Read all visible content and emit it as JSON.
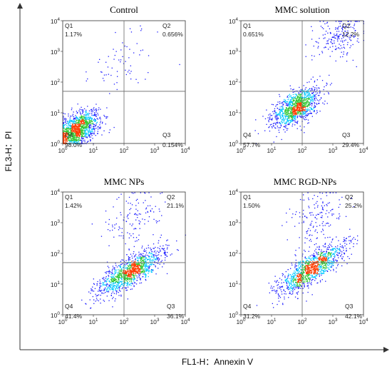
{
  "figure": {
    "xlabel": "FL1-H：Annexin V",
    "ylabel": "FL3-H：PI"
  },
  "chart_data": [
    {
      "type": "scatter",
      "title": "Control",
      "xlabel": "FL1-H：Annexin V",
      "ylabel": "FL3-H：PI",
      "xscale": "log",
      "yscale": "log",
      "xlim": [
        1,
        10000
      ],
      "ylim": [
        1,
        10000
      ],
      "x_ticks": [
        "10",
        "10",
        "10",
        "10",
        "10"
      ],
      "x_tick_exponents": [
        "0",
        "1",
        "2",
        "3",
        "4"
      ],
      "y_ticks": [
        "10",
        "10",
        "10",
        "10",
        "10"
      ],
      "y_tick_exponents": [
        "0",
        "1",
        "2",
        "3",
        "4"
      ],
      "gate": {
        "x": 100,
        "y": 50
      },
      "quadrants": [
        {
          "label": "Q1",
          "percent": "1.17%"
        },
        {
          "label": "Q2",
          "percent": "0.656%"
        },
        {
          "label": "Q3",
          "percent": "0.154%"
        },
        {
          "label": "Q4",
          "percent": "98.0%"
        }
      ],
      "populations": [
        {
          "center": [
            3,
            3
          ],
          "spread": [
            0.35,
            0.3
          ],
          "corr": 0.5,
          "share": 0.95
        },
        {
          "center": [
            100,
            500
          ],
          "spread": [
            0.5,
            0.5
          ],
          "corr": 0.3,
          "share": 0.05
        }
      ]
    },
    {
      "type": "scatter",
      "title": "MMC solution",
      "xlabel": "FL1-H：Annexin V",
      "ylabel": "FL3-H：PI",
      "xscale": "log",
      "yscale": "log",
      "xlim": [
        1,
        10000
      ],
      "ylim": [
        1,
        10000
      ],
      "x_ticks": [
        "10",
        "10",
        "10",
        "10",
        "10"
      ],
      "x_tick_exponents": [
        "0",
        "1",
        "2",
        "3",
        "4"
      ],
      "y_ticks": [
        "10",
        "10",
        "10",
        "10",
        "10"
      ],
      "y_tick_exponents": [
        "0",
        "1",
        "2",
        "3",
        "4"
      ],
      "gate": {
        "x": 100,
        "y": 50
      },
      "quadrants": [
        {
          "label": "Q1",
          "percent": "0.651%"
        },
        {
          "label": "Q2",
          "percent": "12.2%"
        },
        {
          "label": "Q3",
          "percent": "29.4%"
        },
        {
          "label": "Q4",
          "percent": "57.7%"
        }
      ],
      "populations": [
        {
          "center": [
            60,
            15
          ],
          "spread": [
            0.4,
            0.32
          ],
          "corr": 0.6,
          "share": 0.85
        },
        {
          "center": [
            1500,
            3000
          ],
          "spread": [
            0.4,
            0.35
          ],
          "corr": 0.2,
          "share": 0.15
        }
      ]
    },
    {
      "type": "scatter",
      "title": "MMC NPs",
      "xlabel": "FL1-H：Annexin V",
      "ylabel": "FL3-H：PI",
      "xscale": "log",
      "yscale": "log",
      "xlim": [
        1,
        10000
      ],
      "ylim": [
        1,
        10000
      ],
      "x_ticks": [
        "10",
        "10",
        "10",
        "10",
        "10"
      ],
      "x_tick_exponents": [
        "0",
        "1",
        "2",
        "3",
        "4"
      ],
      "y_ticks": [
        "10",
        "10",
        "10",
        "10",
        "10"
      ],
      "y_tick_exponents": [
        "0",
        "1",
        "2",
        "3",
        "4"
      ],
      "gate": {
        "x": 100,
        "y": 50
      },
      "quadrants": [
        {
          "label": "Q1",
          "percent": "1.42%"
        },
        {
          "label": "Q2",
          "percent": "21.1%"
        },
        {
          "label": "Q3",
          "percent": "36.1%"
        },
        {
          "label": "Q4",
          "percent": "41.4%"
        }
      ],
      "populations": [
        {
          "center": [
            150,
            25
          ],
          "spread": [
            0.55,
            0.4
          ],
          "corr": 0.8,
          "share": 0.9
        },
        {
          "center": [
            200,
            1500
          ],
          "spread": [
            0.45,
            0.5
          ],
          "corr": 0.2,
          "share": 0.1
        }
      ]
    },
    {
      "type": "scatter",
      "title": "MMC RGD-NPs",
      "xlabel": "FL1-H：Annexin V",
      "ylabel": "FL3-H：PI",
      "xscale": "log",
      "yscale": "log",
      "xlim": [
        1,
        10000
      ],
      "ylim": [
        1,
        10000
      ],
      "x_ticks": [
        "10",
        "10",
        "10",
        "10",
        "10"
      ],
      "x_tick_exponents": [
        "0",
        "1",
        "2",
        "3",
        "4"
      ],
      "y_ticks": [
        "10",
        "10",
        "10",
        "10",
        "10"
      ],
      "y_tick_exponents": [
        "0",
        "1",
        "2",
        "3",
        "4"
      ],
      "gate": {
        "x": 100,
        "y": 50
      },
      "quadrants": [
        {
          "label": "Q1",
          "percent": "1.50%"
        },
        {
          "label": "Q2",
          "percent": "25.2%"
        },
        {
          "label": "Q3",
          "percent": "42.1%"
        },
        {
          "label": "Q4",
          "percent": "31.2%"
        }
      ],
      "populations": [
        {
          "center": [
            180,
            30
          ],
          "spread": [
            0.55,
            0.42
          ],
          "corr": 0.8,
          "share": 0.88
        },
        {
          "center": [
            300,
            1500
          ],
          "spread": [
            0.45,
            0.5
          ],
          "corr": 0.2,
          "share": 0.12
        }
      ]
    }
  ],
  "colors": {
    "outer_axis": "#333333",
    "panel_frame": "#333333",
    "gate_line": "#666666",
    "density_low": "#1a1aff",
    "density_mid": "#00c8ff",
    "density_high": "#32c832",
    "density_peak": "#ff3c00"
  }
}
